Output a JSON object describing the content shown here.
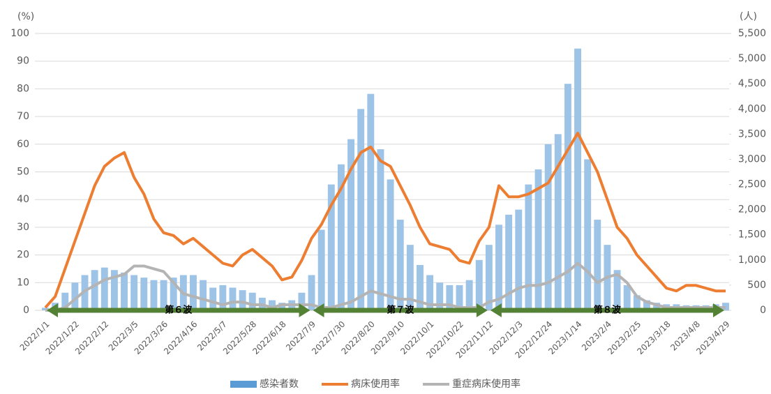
{
  "chart_data": {
    "type": "bar-line",
    "y_unit": "(%)",
    "y2_unit": "(人)",
    "categories": [
      "2022/1/1",
      null,
      null,
      "2022/1/22",
      null,
      null,
      "2022/2/12",
      null,
      null,
      "2022/3/5",
      null,
      null,
      "2022/3/26",
      null,
      null,
      "2022/4/16",
      null,
      null,
      "2022/5/7",
      null,
      null,
      "2022/5/28",
      null,
      null,
      "2022/6/18",
      null,
      null,
      "2022/7/9",
      null,
      null,
      "2022/7/30",
      null,
      null,
      "2022/8/20",
      null,
      null,
      "2022/9/10",
      null,
      null,
      "2022/10/1",
      null,
      null,
      "2022/10/22",
      null,
      null,
      "2022/11/12",
      null,
      null,
      "2022/12/3",
      null,
      null,
      "2022/12/24",
      null,
      null,
      "2023/1/14",
      null,
      null,
      "2023/2/4",
      null,
      null,
      "2023/2/25",
      null,
      null,
      "2023/3/18",
      null,
      null,
      "2023/4/8",
      null,
      null,
      "2023/4/29"
    ],
    "series": [
      {
        "name": "感染者数",
        "kind": "bar",
        "axis": "y2",
        "color": "#9dc3e6",
        "values": [
          50,
          150,
          350,
          550,
          700,
          800,
          850,
          800,
          750,
          700,
          650,
          600,
          600,
          650,
          700,
          700,
          600,
          450,
          500,
          450,
          400,
          350,
          250,
          200,
          150,
          200,
          350,
          700,
          1600,
          2500,
          2900,
          3400,
          4000,
          4300,
          3200,
          2600,
          1800,
          1300,
          900,
          700,
          550,
          500,
          500,
          600,
          1000,
          1300,
          1700,
          1900,
          2000,
          2500,
          2800,
          3300,
          3500,
          4500,
          5200,
          3000,
          1800,
          1300,
          800,
          500,
          300,
          200,
          150,
          120,
          120,
          100,
          100,
          100,
          120,
          150
        ]
      },
      {
        "name": "病床使用率",
        "kind": "line",
        "color": "#ed7d31",
        "values": [
          1,
          5,
          15,
          25,
          35,
          45,
          52,
          55,
          57,
          48,
          42,
          33,
          28,
          27,
          24,
          26,
          23,
          20,
          17,
          16,
          20,
          22,
          19,
          16,
          11,
          12,
          18,
          26,
          31,
          38,
          44,
          51,
          57,
          59,
          54,
          52,
          45,
          38,
          30,
          24,
          23,
          22,
          18,
          17,
          25,
          30,
          45,
          41,
          41,
          42,
          44,
          46,
          52,
          58,
          64,
          57,
          50,
          40,
          30,
          26,
          20,
          16,
          12,
          8,
          7,
          9,
          9,
          8,
          7,
          7
        ]
      },
      {
        "name": "重症病床使用率",
        "kind": "line",
        "color": "#b4b4b4",
        "values": [
          0,
          0,
          1,
          4,
          7,
          9,
          11,
          12,
          13,
          16,
          16,
          15,
          14,
          10,
          6,
          5,
          4,
          3,
          2,
          3,
          3,
          2,
          2,
          1,
          2,
          2,
          2,
          2,
          1,
          1,
          2,
          3,
          5,
          7,
          6,
          5,
          4,
          4,
          3,
          2,
          2,
          2,
          1,
          1,
          1,
          3,
          4,
          6,
          8,
          9,
          9,
          10,
          12,
          14,
          17,
          14,
          10,
          12,
          13,
          10,
          5,
          3,
          2,
          1,
          1,
          1,
          1,
          1,
          1,
          1
        ]
      }
    ],
    "ylim": [
      0,
      100
    ],
    "yticks": [
      0,
      10,
      20,
      30,
      40,
      50,
      60,
      70,
      80,
      90,
      100
    ],
    "y2lim": [
      0,
      5500
    ],
    "y2ticks": [
      0,
      500,
      {
        "value": 1000,
        "label": "1,000"
      },
      {
        "value": 1500,
        "label": "1,500"
      },
      {
        "value": 2000,
        "label": "2,000"
      },
      {
        "value": 2500,
        "label": "2,500"
      },
      {
        "value": 3000,
        "label": "3,000"
      },
      {
        "value": 3500,
        "label": "3,500"
      },
      {
        "value": 4000,
        "label": "4,000"
      },
      {
        "value": 4500,
        "label": "4,500"
      },
      {
        "value": 5000,
        "label": "5,000"
      },
      {
        "value": 5500,
        "label": "5,500"
      }
    ],
    "grid": true,
    "annotations": [
      "第６波",
      "第７波",
      "第８波"
    ]
  }
}
